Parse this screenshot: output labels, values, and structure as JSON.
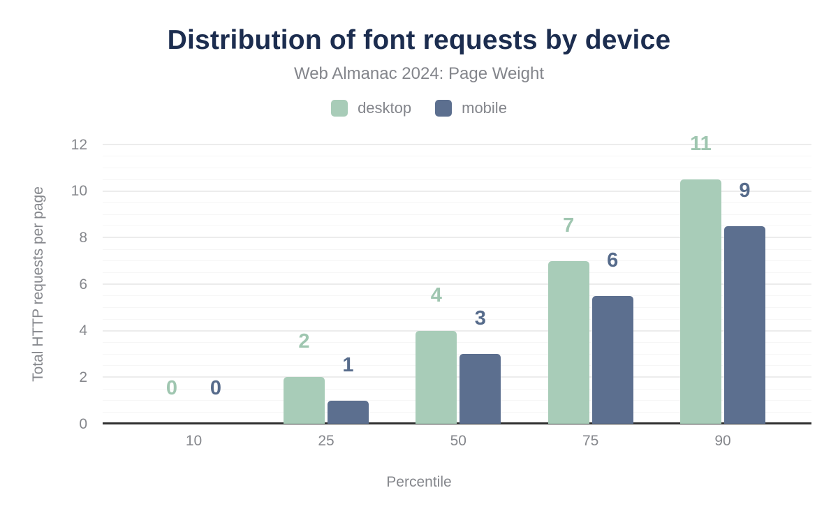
{
  "chart_data": {
    "type": "bar",
    "title": "Distribution of font requests by device",
    "subtitle": "Web Almanac 2024: Page Weight",
    "xlabel": "Percentile",
    "ylabel": "Total HTTP requests per page",
    "categories": [
      "10",
      "25",
      "50",
      "75",
      "90"
    ],
    "series": [
      {
        "name": "desktop",
        "values": [
          0,
          2,
          4,
          7,
          11
        ],
        "drawn_values": [
          0,
          2,
          4,
          7,
          10.5
        ],
        "color": "#a8ccb8",
        "label_color": "#9fc6b0"
      },
      {
        "name": "mobile",
        "values": [
          0,
          1,
          3,
          6,
          9
        ],
        "drawn_values": [
          0,
          1,
          3,
          5.5,
          8.5
        ],
        "color": "#5c6f8f",
        "label_color": "#566b8b"
      }
    ],
    "ylim": [
      0,
      12
    ],
    "yticks": [
      0,
      2,
      4,
      6,
      8,
      10,
      12
    ],
    "grid": {
      "visible": true,
      "minor_step": 0.5,
      "major_step": 2
    },
    "legend_position": "top",
    "colors": {
      "title": "#1c2d4f",
      "axis_text": "#85878c",
      "axis_line": "#303030",
      "gridline_major": "#ececec",
      "gridline_minor": "#f6f6f6",
      "background": "#ffffff"
    }
  }
}
